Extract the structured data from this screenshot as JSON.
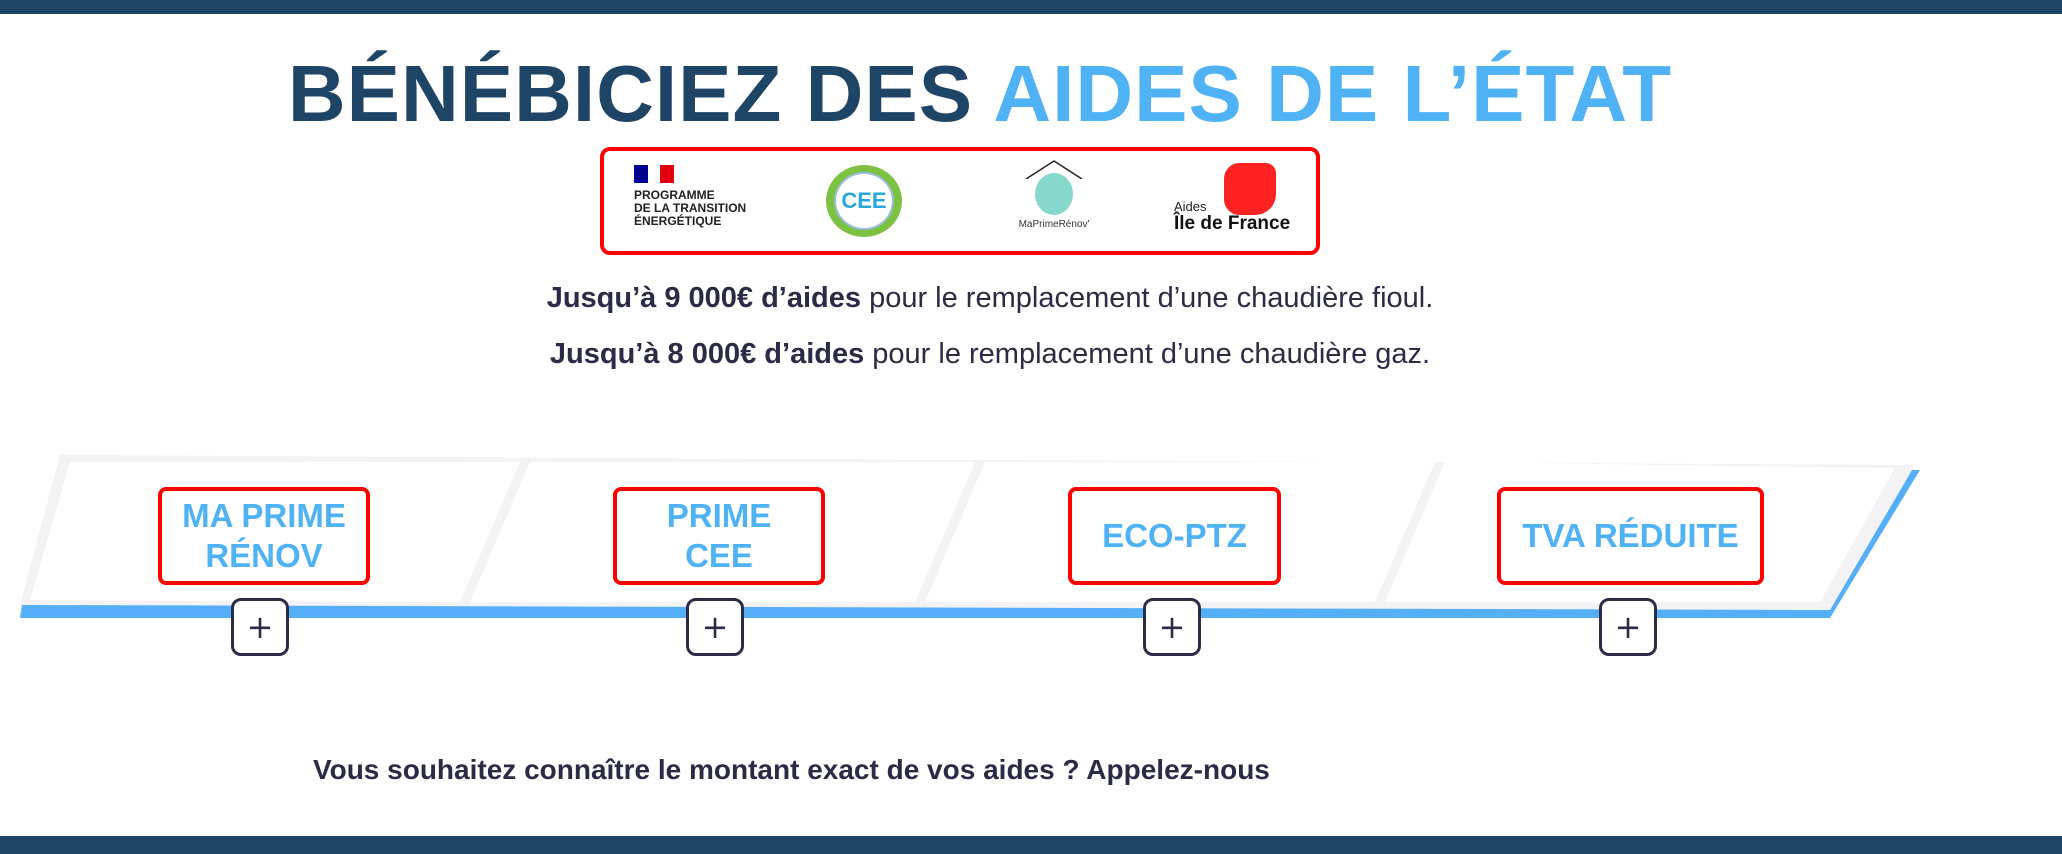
{
  "title": {
    "part1": "BÉNÉBICIEZ DES ",
    "part2": "AIDES DE L’ÉTAT"
  },
  "logos": {
    "programme": [
      "PROGRAMME",
      "DE LA TRANSITION",
      "ÉNERGÉTIQUE"
    ],
    "cee": "CEE",
    "maprimerenov": "MaPrimeRénov'",
    "idf_small": "Aides",
    "idf_big": "Île de France"
  },
  "lines": [
    {
      "bold": "Jusqu’à 9 000€ d’aides",
      "rest": " pour le remplacement d’une chaudière fioul."
    },
    {
      "bold": "Jusqu’à 8 000€ d’aides",
      "rest": " pour le remplacement d’une chaudière gaz."
    }
  ],
  "aids": [
    {
      "line1": "MA PRIME",
      "line2": "RÉNOV"
    },
    {
      "line1": "PRIME",
      "line2": "CEE"
    },
    {
      "line1": "ECO-PTZ",
      "line2": ""
    },
    {
      "line1": "TVA RÉDUITE",
      "line2": ""
    }
  ],
  "plus_label": "+",
  "cta": "Vous souhaitez connaître le montant exact de vos aides ? Appelez-nous",
  "colors": {
    "navy": "#1f4566",
    "accent": "#4fb2f5",
    "highlight": "#ff0000"
  }
}
